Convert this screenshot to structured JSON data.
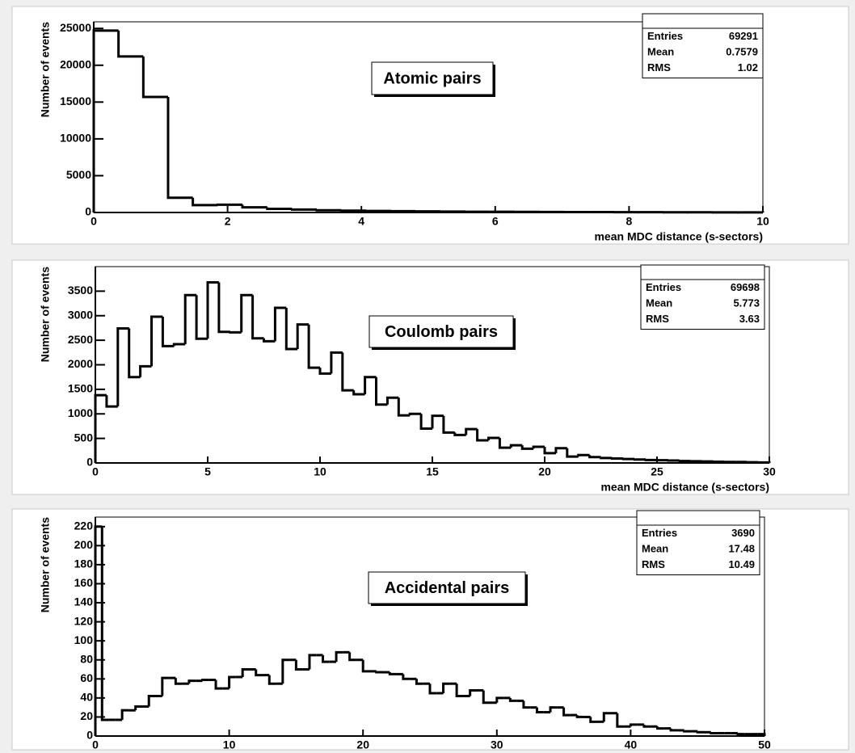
{
  "chart_data": [
    {
      "type": "histogram",
      "title": "Atomic pairs",
      "xlabel": "mean MDC distance (s-sectors)",
      "ylabel": "Number of events",
      "color": "#000000",
      "stats": [
        {
          "label": "Entries",
          "value": 69291
        },
        {
          "label": "Mean",
          "value": 0.7579
        },
        {
          "label": "RMS",
          "value": 1.02
        }
      ],
      "bins": [
        0,
        0.37,
        0.741,
        1.111,
        1.481,
        1.852,
        2.222,
        2.593,
        2.963,
        3.333,
        3.704,
        4.074,
        4.444,
        4.815,
        5.185,
        5.556,
        5.926,
        6.296,
        6.667,
        7.037,
        7.407,
        7.778,
        8.148,
        8.519,
        8.889,
        9.259,
        9.63,
        10
      ],
      "values": [
        24700,
        21200,
        15700,
        2000,
        1000,
        1050,
        700,
        500,
        400,
        300,
        250,
        200,
        180,
        150,
        120,
        100,
        90,
        80,
        70,
        60,
        50,
        40,
        35,
        30,
        25,
        20,
        15
      ],
      "xlim": [
        0,
        10
      ],
      "ylim": [
        0,
        25900
      ],
      "xticks": [
        0,
        2,
        4,
        6,
        8,
        10
      ],
      "yticks": [
        0,
        5000,
        10000,
        15000,
        20000,
        25000
      ]
    },
    {
      "type": "histogram",
      "title": "Coulomb pairs",
      "xlabel": "mean MDC distance (s-sectors)",
      "ylabel": "Number of events",
      "color": "#000000",
      "stats": [
        {
          "label": "Entries",
          "value": 69698
        },
        {
          "label": "Mean",
          "value": 5.773
        },
        {
          "label": "RMS",
          "value": 3.63
        }
      ],
      "bins": [
        0,
        0.5,
        1,
        1.5,
        2,
        2.5,
        3,
        3.5,
        4,
        4.5,
        5,
        5.5,
        6,
        6.5,
        7,
        7.5,
        8,
        8.5,
        9,
        9.5,
        10,
        10.5,
        11,
        11.5,
        12,
        12.5,
        13,
        13.5,
        14,
        14.5,
        15,
        15.5,
        16,
        16.5,
        17,
        17.5,
        18,
        18.5,
        19,
        19.5,
        20,
        20.5,
        21,
        21.5,
        22,
        22.5,
        23,
        23.5,
        24,
        24.5,
        25,
        25.5,
        26,
        26.5,
        27,
        27.5,
        28,
        28.5,
        29,
        29.5,
        30
      ],
      "values": [
        1380,
        1150,
        2740,
        1750,
        1970,
        2980,
        2380,
        2420,
        3420,
        2530,
        3680,
        2670,
        2660,
        3420,
        2540,
        2480,
        3160,
        2320,
        2820,
        1940,
        1820,
        2250,
        1480,
        1400,
        1750,
        1190,
        1330,
        970,
        1000,
        700,
        960,
        620,
        570,
        690,
        460,
        510,
        310,
        360,
        290,
        330,
        200,
        300,
        130,
        160,
        120,
        100,
        90,
        80,
        70,
        60,
        55,
        50,
        40,
        35,
        30,
        25,
        20,
        20,
        15,
        10
      ],
      "xlim": [
        0,
        30
      ],
      "ylim": [
        0,
        4000
      ],
      "xticks": [
        0,
        5,
        10,
        15,
        20,
        25,
        30
      ],
      "yticks": [
        0,
        500,
        1000,
        1500,
        2000,
        2500,
        3000,
        3500
      ]
    },
    {
      "type": "histogram",
      "title": "Accidental pairs",
      "xlabel": "mean MDC distance (s-sectors)",
      "ylabel": "Number of events",
      "color": "#000000",
      "stats": [
        {
          "label": "Entries",
          "value": 3690
        },
        {
          "label": "Mean",
          "value": 17.48
        },
        {
          "label": "RMS",
          "value": 10.49
        }
      ],
      "bins": [
        0,
        0.5,
        1,
        1.5,
        2,
        2.5,
        3,
        3.5,
        4,
        4.5,
        5,
        5.5,
        6,
        6.5,
        7,
        7.5,
        8,
        8.5,
        9,
        9.5,
        10,
        10.5,
        11,
        11.5,
        12,
        12.5,
        13,
        13.5,
        14,
        14.5,
        15,
        15.5,
        16,
        16.5,
        17,
        17.5,
        18,
        18.5,
        19,
        19.5,
        20,
        20.5,
        21,
        21.5,
        22,
        22.5,
        23,
        23.5,
        24,
        24.5,
        25,
        25.5,
        26,
        26.5,
        27,
        27.5,
        28,
        28.5,
        29,
        29.5,
        30,
        30.5,
        31,
        31.5,
        32,
        32.5,
        33,
        33.5,
        34,
        34.5,
        35,
        35.5,
        36,
        36.5,
        37,
        37.5,
        38,
        38.5,
        39,
        39.5,
        40,
        40.5,
        41,
        41.5,
        42,
        42.5,
        43,
        43.5,
        44,
        44.5,
        45,
        45.5,
        46,
        46.5,
        47,
        47.5,
        48,
        48.5,
        49,
        49.5,
        50
      ],
      "values": [
        220,
        17,
        17,
        17,
        27,
        27,
        31,
        31,
        42,
        42,
        61,
        61,
        55,
        55,
        58,
        58,
        59,
        59,
        50,
        50,
        62,
        62,
        70,
        70,
        64,
        64,
        55,
        55,
        80,
        80,
        70,
        70,
        85,
        85,
        78,
        78,
        88,
        88,
        80,
        80,
        68,
        68,
        67,
        67,
        65,
        65,
        60,
        60,
        55,
        55,
        45,
        45,
        55,
        55,
        42,
        42,
        48,
        48,
        35,
        35,
        40,
        40,
        37,
        37,
        30,
        30,
        25,
        25,
        30,
        30,
        22,
        22,
        20,
        20,
        15,
        15,
        24,
        24,
        10,
        10,
        12,
        12,
        10,
        10,
        8,
        8,
        6,
        6,
        5,
        5,
        4,
        4,
        3,
        3,
        3,
        3,
        2,
        2,
        2,
        2
      ],
      "xlim": [
        0,
        50
      ],
      "ylim": [
        0,
        230
      ],
      "xticks": [
        0,
        10,
        20,
        30,
        40,
        50
      ],
      "yticks": [
        0,
        20,
        40,
        60,
        80,
        100,
        120,
        140,
        160,
        180,
        200,
        220
      ]
    }
  ]
}
